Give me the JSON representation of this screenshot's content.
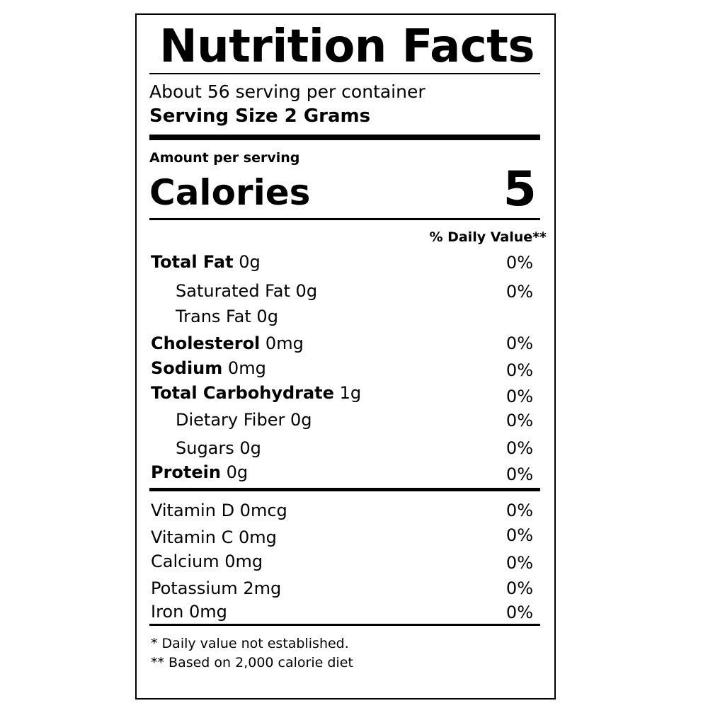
{
  "title": "Nutrition Facts",
  "servings_per_container": "About 56 serving per container",
  "serving_size": "Serving Size 2 Grams",
  "amount_per_serving": "Amount per serving",
  "calories": {
    "label": "Calories",
    "value": "5"
  },
  "daily_value_header": "% Daily Value**",
  "nutrients": [
    {
      "name": "Total Fat",
      "amount": "0g",
      "dv": "0%"
    },
    {
      "name": "Saturated Fat",
      "amount": "0g",
      "dv": "0%"
    },
    {
      "name": "Trans Fat",
      "amount": "0g",
      "dv": ""
    },
    {
      "name": "Cholesterol",
      "amount": "0mg",
      "dv": "0%"
    },
    {
      "name": "Sodium",
      "amount": "0mg",
      "dv": "0%"
    },
    {
      "name": "Total Carbohydrate",
      "amount": "1g",
      "dv": "0%"
    },
    {
      "name": "Dietary Fiber",
      "amount": "0g",
      "dv": "0%"
    },
    {
      "name": "Sugars",
      "amount": "0g",
      "dv": "0%"
    },
    {
      "name": "Protein",
      "amount": "0g",
      "dv": "0%"
    }
  ],
  "vitamins": [
    {
      "name": "Vitamin D 0mcg",
      "dv": "0%"
    },
    {
      "name": "Vitamin C 0mg",
      "dv": "0%"
    },
    {
      "name": "Calcium 0mg",
      "dv": "0%"
    },
    {
      "name": "Potassium 2mg",
      "dv": "0%"
    },
    {
      "name": "Iron 0mg",
      "dv": "0%"
    }
  ],
  "footnotes": [
    "* Daily value not established.",
    "** Based on 2,000 calorie diet"
  ]
}
